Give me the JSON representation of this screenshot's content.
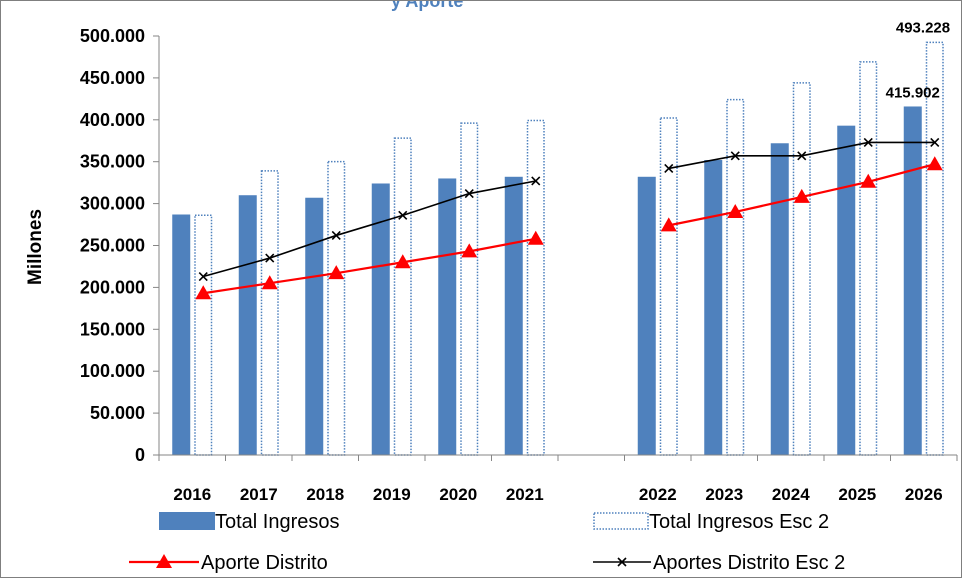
{
  "chart_data": {
    "type": "bar",
    "title_fragment": "y Aporte",
    "xlabel": "",
    "ylabel": "Millones",
    "ylim": [
      0,
      500000
    ],
    "y_ticks": [
      "0",
      "50.000",
      "100.000",
      "150.000",
      "200.000",
      "250.000",
      "300.000",
      "350.000",
      "400.000",
      "450.000",
      "500.000"
    ],
    "categories": [
      "2016",
      "2017",
      "2018",
      "2019",
      "2020",
      "2021",
      "",
      "2022",
      "2023",
      "2024",
      "2025",
      "2026"
    ],
    "series": [
      {
        "name": "Total Ingresos",
        "kind": "bar",
        "style": "solid",
        "color": "#4f81bd",
        "values": [
          287000,
          310000,
          307000,
          324000,
          330000,
          332000,
          null,
          332000,
          352000,
          372000,
          393000,
          415902
        ]
      },
      {
        "name": "Total Ingresos Esc 2",
        "kind": "bar",
        "style": "dotted",
        "color": "#4f81bd",
        "values": [
          287000,
          340000,
          351000,
          379000,
          397000,
          400000,
          null,
          403000,
          425000,
          445000,
          470000,
          493228
        ]
      },
      {
        "name": "Aporte Distrito",
        "kind": "line",
        "marker": "triangle",
        "color": "#ff0000",
        "values": [
          193000,
          205000,
          217000,
          230000,
          243000,
          258000,
          null,
          274000,
          290000,
          308000,
          326000,
          347000
        ]
      },
      {
        "name": "Aportes Distrito Esc 2",
        "kind": "line",
        "marker": "x",
        "color": "#000000",
        "values": [
          213000,
          235000,
          262000,
          286000,
          312000,
          327000,
          null,
          342000,
          357000,
          357000,
          373000,
          373000
        ]
      }
    ],
    "data_labels": [
      {
        "series": 0,
        "index": 11,
        "text": "415.902"
      },
      {
        "series": 1,
        "index": 11,
        "text": "493.228"
      }
    ],
    "legend_position": "bottom",
    "grid": false
  }
}
